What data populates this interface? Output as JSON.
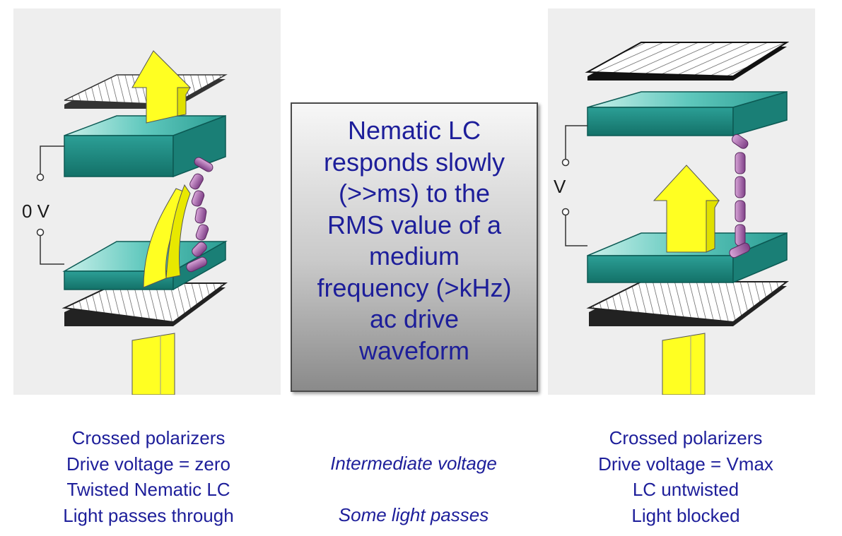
{
  "left_panel": {
    "voltage_label": "0 V",
    "captions": [
      "Crossed polarizers",
      "Drive voltage  = zero",
      "Twisted Nematic LC",
      "Light passes through"
    ]
  },
  "center": {
    "box_lines": [
      "Nematic LC",
      "responds slowly",
      "(>>ms) to the",
      "RMS value of a",
      "medium",
      "frequency (>kHz)",
      "ac drive",
      "waveform"
    ],
    "caption_top": "Intermediate voltage",
    "caption_bottom": "Some light passes"
  },
  "right_panel": {
    "voltage_label": "V",
    "captions": [
      "Crossed polarizers",
      "Drive voltage  = Vmax",
      "LC untwisted",
      "Light blocked"
    ]
  },
  "colors": {
    "text_blue": "#1d1e9a",
    "glass_teal": "#2ea9a0",
    "light_yellow": "#ffff22",
    "molecule_purple": "#a46aa8",
    "panel_gray": "#eeeeee"
  }
}
